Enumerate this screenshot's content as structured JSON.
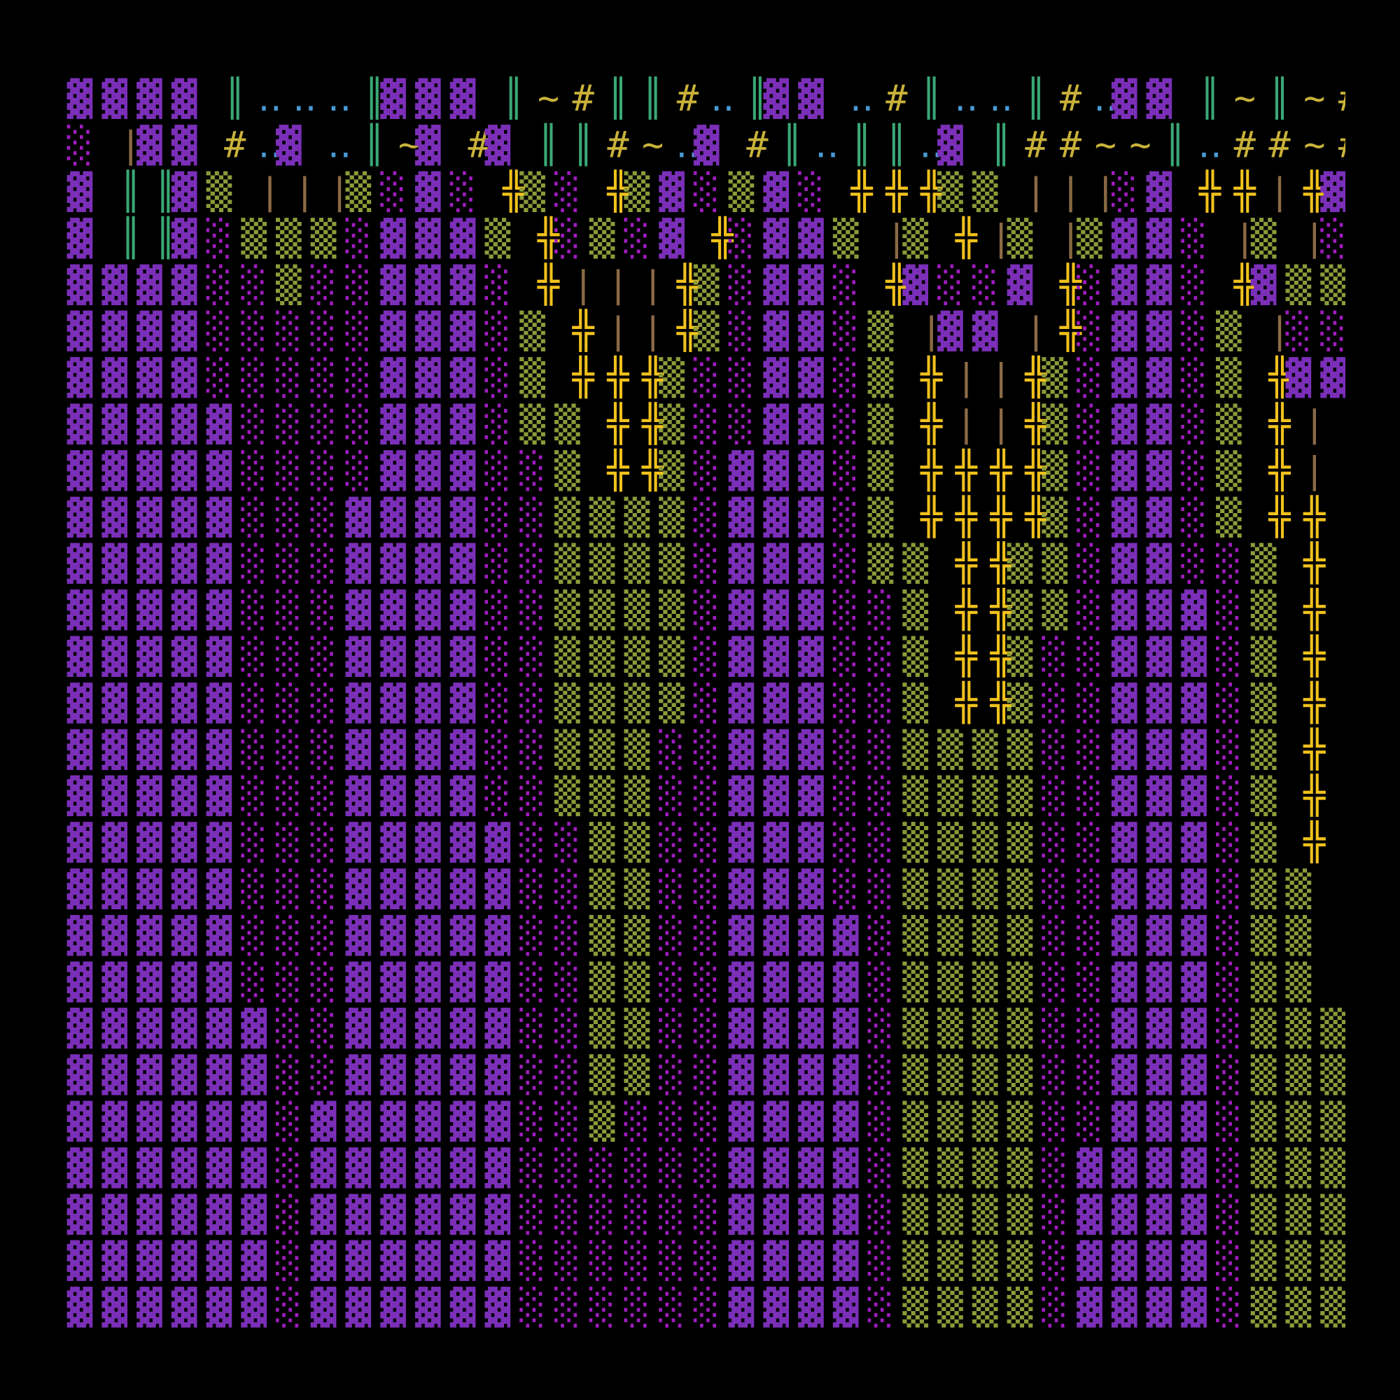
{
  "map": {
    "rows": [
      "▓▓▓▓║‥‥‥║▓▓▓║~#║║#‥║▓▓‥#║‥‥║#‥▓▓║~║~#",
      "░|▓▓#‥▓‥║~▓#▓║║#~‥▓#║‥║║‥▓║##~~║‥##~#",
      "▓║║▓▒|||▒░▓░╬▒░╬▒▓░▒▓░╬╬╬▒▒|||░▓╬╬|╬▓",
      "▓║║▓░▒▒▒░▓▓▓▒╬░▒░▓╬░▓▓▒|▒╬|▒|▒▓▓░|▒|░",
      "▓▓▓▓░░▒░░▓▓▓░╬|||╬▒░▓▓░╬▓░░▓╬░▓▓░╬▓▒▒",
      "▓▓▓▓░░░░░▓▓▓░▒╬||╬▒░▓▓░▒|▓▓|╬░▓▓░▒|░░",
      "▓▓▓▓░░░░░▓▓▓░▒╬╬╬▒░░▓▓░▒╬||╬▒░▓▓░▒╬▓▓",
      "▓▓▓▓▓░░░░▓▓▓░▒▒╬╬▒░░▓▓░▒╬||╬▒░▓▓░▒╬||",
      "▓▓▓▓▓░░░░▓▓▓░░▒╬╬▒░▓▓▓░▒╬╬╬╬▒░▓▓░▒╬||",
      "▓▓▓▓▓░░░▓▓▓▓░░▒▒▒▒░▓▓▓░▒╬╬╬╬▒░▓▓░▒╬╬|",
      "▓▓▓▓▓░░░▓▓▓▓░░▒▒▒▒░▓▓▓░▒▒╬╬▒▒░▓▓░░▒╬|",
      "▓▓▓▓▓░░░▓▓▓▓░░▒▒▒▒░▓▓▓░░▒╬╬▒▒░▓▓▓░▒╬:",
      "▓▓▓▓▓░░░▓▓▓▓░░▒▒▒▒░▓▓▓░░▒╬╬▒░░▓▓▓░▒╬:",
      "▓▓▓▓▓░░░▓▓▓▓░░▒▒▒▒░▓▓▓░░▒╬╬▒░░▓▓▓░▒╬:",
      "▓▓▓▓▓░░░▓▓▓▓░░▒▒▒░░▓▓▓░░▒▒▒▒░░▓▓▓░▒╬:",
      "▓▓▓▓▓░░░▓▓▓▓░░▒▒▒░░▓▓▓░░▒▒▒▒░░▓▓▓░▒╬:",
      "▓▓▓▓▓░░░▓▓▓▓▓░░▒▒░░▓▓▓░░▒▒▒▒░░▓▓▓░▒╬:",
      "▓▓▓▓▓░░░▓▓▓▓▓░░▒▒░░▓▓▓░░▒▒▒▒░░▓▓▓░▒▒:",
      "▓▓▓▓▓░░░▓▓▓▓▓░░▒▒░░▓▓▓▓░▒▒▒▒░░▓▓▓░▒▒:",
      "▓▓▓▓▓░░░▓▓▓▓▓░░▒▒░░▓▓▓▓░▒▒▒▒░░▓▓▓░▒▒:",
      "▓▓▓▓▓▓░░▓▓▓▓▓░░▒▒░░▓▓▓▓░▒▒▒▒░░▓▓▓░▒▒▒",
      "▓▓▓▓▓▓░░▓▓▓▓▓░░▒▒░░▓▓▓▓░▒▒▒▒░░▓▓▓░▒▒▒",
      "▓▓▓▓▓▓░▓▓▓▓▓▓░░▒░░░▓▓▓▓░▒▒▒▒░░▓▓▓░▒▒▒",
      "▓▓▓▓▓▓░▓▓▓▓▓▓░░░░░░▓▓▓▓░▒▒▒▒░▓▓▓▓░▒▒▒",
      "▓▓▓▓▓▓░▓▓▓▓▓▓░░░░░░▓▓▓▓░▒▒▒▒░▓▓▓▓░▒▒▒",
      "▓▓▓▓▓▓░▓▓▓▓▓▓░░░░░░▓▓▓▓░▒▒▒▒░▓▓▓▓░▒▒▒",
      "▓▓▓▓▓▓░▓▓▓▓▓▓░░░░░░▓▓▓▓░▒▒▒▒░▓▓▓▓░▒▒▒"
    ],
    "palette": {
      "▓": "#7b2fb8",
      "░": "#a01cc0",
      "▒": "#8c9c3a",
      "║": "#3aa876",
      "|": "#8b6a45",
      "╬": "#f2c21c",
      "#": "#c9b23a",
      "‥": "#4a9ad6",
      "~": "#c9b23a",
      ":": "#f2c21c"
    }
  }
}
